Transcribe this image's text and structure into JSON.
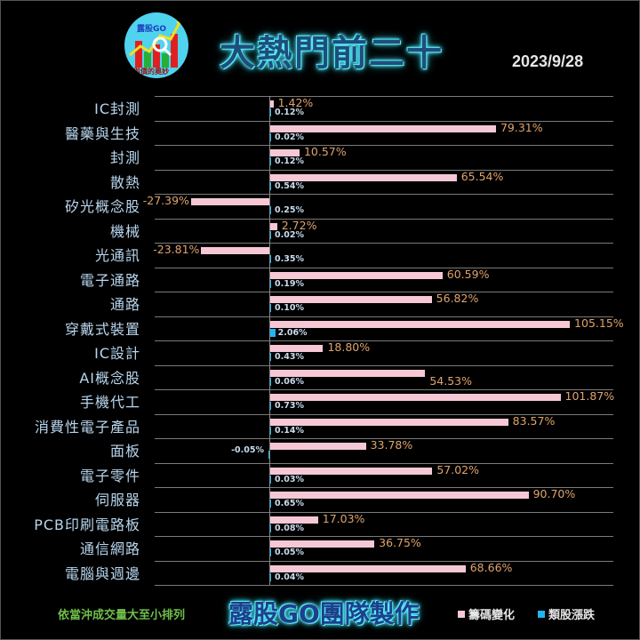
{
  "header": {
    "logo": {
      "brand": "露股GO",
      "slogan": "財與價的奧妙"
    },
    "title": "大熱門前二十",
    "date": "2023/9/28"
  },
  "footer": {
    "note": "依當沖成交量大至小排列",
    "team": "露股GO團隊製作",
    "legend": [
      {
        "label": "籌碼變化",
        "color": "#f6c7d4"
      },
      {
        "label": "類股漲跌",
        "color": "#1fb6f0"
      }
    ]
  },
  "colors": {
    "chip": "#f6c7d4",
    "sector": "#1fb6f0",
    "chip_label": "#e0a36c",
    "sector_label": "#c8dcee",
    "category": "#b8d6ee"
  },
  "chart_data": {
    "type": "bar",
    "orientation": "horizontal",
    "title": "大熱門前二十",
    "subtitle": "2023/9/28",
    "xlabel": "",
    "ylabel": "",
    "grid": true,
    "legend_position": "bottom-right",
    "categories": [
      "IC封測",
      "醫藥與生技",
      "封測",
      "散熱",
      "矽光概念股",
      "機械",
      "光通訊",
      "電子通路",
      "通路",
      "穿戴式裝置",
      "IC設計",
      "AI概念股",
      "手機代工",
      "消費性電子產品",
      "面板",
      "電子零件",
      "伺服器",
      "PCB印刷電路板",
      "通信網路",
      "電腦與週邊"
    ],
    "series": [
      {
        "name": "籌碼變化",
        "values": [
          1.42,
          79.31,
          10.57,
          65.54,
          -27.39,
          2.72,
          -23.81,
          60.59,
          56.82,
          105.15,
          18.8,
          54.53,
          101.87,
          83.57,
          33.78,
          57.02,
          90.7,
          17.03,
          36.75,
          68.66
        ],
        "labels": [
          "1.42%",
          "79.31%",
          "10.57%",
          "65.54%",
          "-27.39%",
          "2.72%",
          "-23.81%",
          "60.59%",
          "56.82%",
          "105.15%",
          "18.80%",
          "54.53%",
          "101.87%",
          "83.57%",
          "33.78%",
          "57.02%",
          "90.70%",
          "17.03%",
          "36.75%",
          "68.66%"
        ]
      },
      {
        "name": "類股漲跌",
        "values": [
          0.12,
          0.02,
          0.12,
          0.54,
          0.25,
          0.02,
          0.35,
          0.19,
          0.1,
          2.06,
          0.43,
          0.06,
          0.73,
          0.14,
          -0.05,
          0.03,
          0.65,
          0.08,
          0.05,
          0.04
        ],
        "labels": [
          "0.12%",
          "0.02%",
          "0.12%",
          "0.54%",
          "0.25%",
          "0.02%",
          "0.35%",
          "0.19%",
          "0.10%",
          "2.06%",
          "0.43%",
          "0.06%",
          "0.73%",
          "0.14%",
          "-0.05%",
          "0.03%",
          "0.65%",
          "0.08%",
          "0.05%",
          "0.04%"
        ]
      }
    ],
    "xlim": [
      -40,
      120
    ],
    "note": "依當沖成交量大至小排列"
  }
}
